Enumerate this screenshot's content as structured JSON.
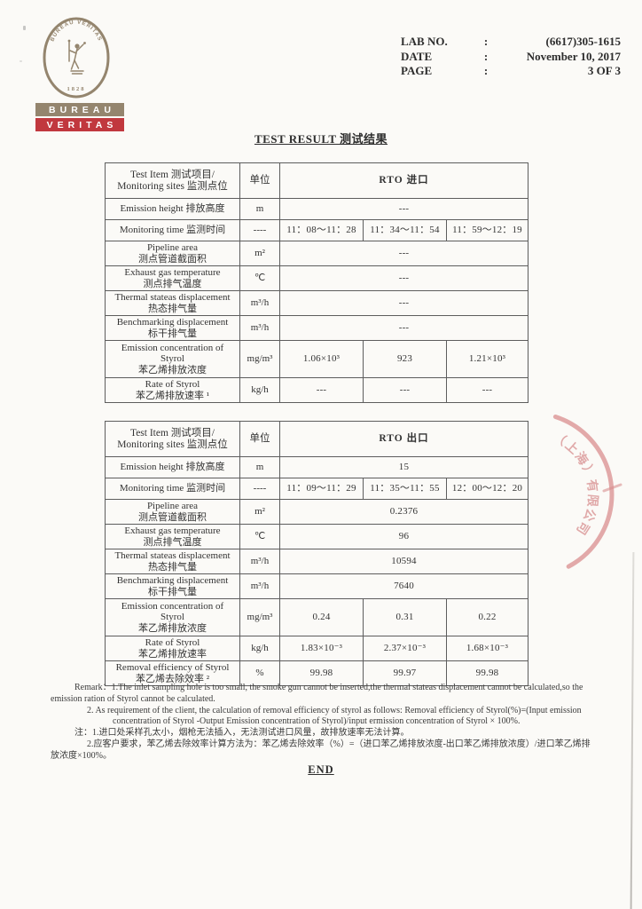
{
  "title": "TEST RESULT 测试结果",
  "end_label": "END",
  "logo": {
    "seal_text": "BUREAU VERITAS",
    "seal_year": "1828",
    "bar1": "BUREAU",
    "bar2": "VERITAS",
    "taupe_color": "#94856e",
    "red_color": "#c1383e"
  },
  "header": {
    "rows": [
      {
        "label": "LAB NO.",
        "sep": ":",
        "value": "(6617)305-1615"
      },
      {
        "label": "DATE",
        "sep": ":",
        "value": "November 10, 2017"
      },
      {
        "label": "PAGE",
        "sep": ":",
        "value": "3 OF 3"
      }
    ]
  },
  "tables": [
    {
      "header": {
        "item_lines": [
          "Test Item 测试项目/",
          "Monitoring sites 监测点位"
        ],
        "unit": "单位",
        "site": "RTO 进口"
      },
      "rows": [
        {
          "label": [
            "Emission height 排放高度"
          ],
          "unit": "m",
          "values": [
            "---"
          ]
        },
        {
          "label": [
            "Monitoring time 监测时间"
          ],
          "unit": "----",
          "values": [
            "11：08～11：28",
            "11：34～11：54",
            "11：59～12：19"
          ]
        },
        {
          "label": [
            "Pipeline area",
            "测点管道截面积"
          ],
          "unit": "m²",
          "values": [
            "---"
          ]
        },
        {
          "label": [
            "Exhaust gas temperature",
            "测点排气温度"
          ],
          "unit": "℃",
          "values": [
            "---"
          ]
        },
        {
          "label": [
            "Thermal stateas displacement",
            "热态排气量"
          ],
          "unit": "m³/h",
          "values": [
            "---"
          ]
        },
        {
          "label": [
            "Benchmarking displacement",
            "标干排气量"
          ],
          "unit": "m³/h",
          "values": [
            "---"
          ]
        },
        {
          "label": [
            "Emission concentration of",
            "Styrol",
            "苯乙烯排放浓度"
          ],
          "unit": "mg/m³",
          "values": [
            "1.06×10³",
            "923",
            "1.21×10³"
          ]
        },
        {
          "label": [
            "Rate of Styrol",
            "苯乙烯排放速率 ¹"
          ],
          "unit": "kg/h",
          "values": [
            "---",
            "---",
            "---"
          ]
        }
      ]
    },
    {
      "header": {
        "item_lines": [
          "Test Item 测试项目/",
          "Monitoring sites 监测点位"
        ],
        "unit": "单位",
        "site": "RTO 出口"
      },
      "rows": [
        {
          "label": [
            "Emission height 排放高度"
          ],
          "unit": "m",
          "values": [
            "15"
          ]
        },
        {
          "label": [
            "Monitoring time 监测时间"
          ],
          "unit": "----",
          "values": [
            "11：09～11：29",
            "11：35～11：55",
            "12：00～12：20"
          ]
        },
        {
          "label": [
            "Pipeline area",
            "测点管道截面积"
          ],
          "unit": "m²",
          "values": [
            "0.2376"
          ]
        },
        {
          "label": [
            "Exhaust gas temperature",
            "测点排气温度"
          ],
          "unit": "℃",
          "values": [
            "96"
          ]
        },
        {
          "label": [
            "Thermal stateas displacement",
            "热态排气量"
          ],
          "unit": "m³/h",
          "values": [
            "10594"
          ]
        },
        {
          "label": [
            "Benchmarking displacement",
            "标干排气量"
          ],
          "unit": "m³/h",
          "values": [
            "7640"
          ]
        },
        {
          "label": [
            "Emission concentration of",
            "Styrol",
            "苯乙烯排放浓度"
          ],
          "unit": "mg/m³",
          "values": [
            "0.24",
            "0.31",
            "0.22"
          ]
        },
        {
          "label": [
            "Rate of Styrol",
            "苯乙烯排放速率"
          ],
          "unit": "kg/h",
          "values": [
            "1.83×10⁻³",
            "2.37×10⁻³",
            "1.68×10⁻³"
          ]
        },
        {
          "label": [
            "Removal efficiency of Styrol",
            "苯乙烯去除效率 ²"
          ],
          "unit": "%",
          "values": [
            "99.98",
            "99.97",
            "99.98"
          ]
        }
      ]
    }
  ],
  "remarks": {
    "lines": [
      {
        "indent": 1,
        "text": "Remark：1.The inlet sampling hole is too small, the smoke gun cannot be inserted,the thermal stateas displacement cannot be calculated,so the"
      },
      {
        "indent": 0,
        "text": "emission ration of Styrol cannot be calculated."
      },
      {
        "indent": 2,
        "text": "2. As requirement of the client, the calculation of removal efficiency of styrol as follows: Removal efficiency of Styrol(%)=(Input emission"
      },
      {
        "indent": 3,
        "text": "concentration of Styrol -Output Emission concentration of Styrol)/input ermission concentration of Styrol × 100%."
      },
      {
        "indent": 1,
        "text": "注：1.进口处采样孔太小，烟枪无法插入，无法测试进口风量，故排放速率无法计算。"
      },
      {
        "indent": 2,
        "text": "2.应客户要求，苯乙烯去除效率计算方法为：苯乙烯去除效率（%）=（进口苯乙烯排放浓度-出口苯乙烯排放浓度）/进口苯乙烯排"
      },
      {
        "indent": 0,
        "text": "放浓度×100%。"
      }
    ]
  },
  "stamp": {
    "text": "（上海）有限公司",
    "color": "#d88f8f"
  }
}
